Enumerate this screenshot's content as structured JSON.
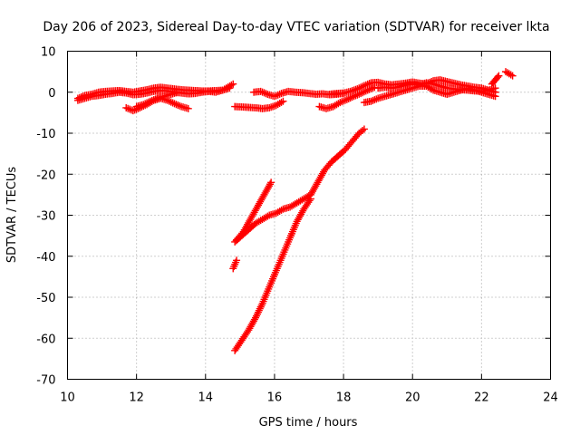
{
  "chart_data": {
    "type": "scatter",
    "title": "Day 206 of 2023, Sidereal Day-to-day VTEC variation (SDTVAR) for receiver lkta",
    "xlabel": "GPS time / hours",
    "ylabel": "SDTVAR / TECUs",
    "xlim": [
      10,
      24
    ],
    "ylim": [
      -70,
      10
    ],
    "xticks": [
      10,
      12,
      14,
      16,
      18,
      20,
      22,
      24
    ],
    "yticks": [
      10,
      0,
      -10,
      -20,
      -30,
      -40,
      -50,
      -60,
      -70
    ],
    "grid": true,
    "marker": "plus",
    "series_color": "#ff0000",
    "series": [
      {
        "x": [
          10.3,
          10.5,
          10.7,
          10.9,
          11.1,
          11.3,
          11.5,
          11.7,
          11.9,
          12.1,
          12.3,
          12.5,
          12.7,
          12.9,
          13.1,
          13.3,
          13.5,
          13.7,
          13.9,
          14.1,
          14.3,
          14.5,
          14.7
        ],
        "y": [
          -1.5,
          -0.8,
          -0.5,
          0,
          0.2,
          0.3,
          0.4,
          0.2,
          0,
          0.3,
          0.6,
          1.0,
          1.2,
          1.0,
          0.8,
          0.6,
          0.5,
          0.4,
          0.3,
          0.3,
          0.4,
          0.5,
          1.0
        ]
      },
      {
        "x": [
          10.3,
          10.5,
          10.7,
          10.9,
          11.1,
          11.3,
          11.5,
          11.7,
          11.9,
          12.1,
          12.3,
          12.5,
          12.7,
          12.9,
          13.1,
          13.3,
          13.5,
          13.7,
          13.9,
          14.1,
          14.3,
          14.5,
          14.8
        ],
        "y": [
          -2.0,
          -1.5,
          -1.0,
          -0.8,
          -0.5,
          -0.3,
          0,
          -0.2,
          -0.6,
          -0.5,
          -0.2,
          0.2,
          0.4,
          0.3,
          0,
          -0.2,
          -0.4,
          -0.3,
          0,
          0.2,
          0,
          0.5,
          2.0
        ]
      },
      {
        "x": [
          11.7,
          11.9,
          12.1,
          12.3,
          12.5,
          12.7,
          12.9,
          13.1,
          13.3,
          13.5
        ],
        "y": [
          -3.8,
          -4.5,
          -3.8,
          -3.0,
          -2.0,
          -1.5,
          -2.0,
          -2.8,
          -3.5,
          -4.0
        ]
      },
      {
        "x": [
          12.0,
          12.2,
          12.4,
          12.6,
          12.8,
          13.0,
          13.2
        ],
        "y": [
          -3.5,
          -3.0,
          -2.2,
          -1.5,
          -1.0,
          -0.5,
          0.0
        ]
      },
      {
        "x": [
          14.85,
          15.05,
          15.25,
          15.45,
          15.65,
          15.85,
          16.05,
          16.25
        ],
        "y": [
          -3.5,
          -3.6,
          -3.7,
          -3.8,
          -4.0,
          -3.8,
          -3.2,
          -2.2
        ]
      },
      {
        "x": [
          15.4,
          15.6,
          15.8,
          16.0,
          16.2,
          16.4,
          16.6,
          16.8,
          17.0,
          17.2,
          17.4,
          17.6,
          17.8,
          18.0
        ],
        "y": [
          0,
          0.2,
          -0.5,
          -1.0,
          -0.3,
          0.2,
          0,
          -0.1,
          -0.3,
          -0.5,
          -0.4,
          -0.6,
          -0.5,
          -0.3
        ]
      },
      {
        "x": [
          17.3,
          17.5,
          17.7,
          17.9,
          18.1,
          18.3,
          18.5,
          18.7,
          18.9
        ],
        "y": [
          -3.5,
          -4.0,
          -3.5,
          -2.5,
          -1.8,
          -1.0,
          -0.3,
          0.5,
          1.2
        ]
      },
      {
        "x": [
          17.6,
          17.8,
          18.0,
          18.2,
          18.4,
          18.6,
          18.8,
          19.0,
          19.2,
          19.4,
          19.6,
          19.8,
          20.0,
          20.2,
          20.4,
          20.6,
          20.8,
          21.0,
          21.2,
          21.4,
          21.6,
          21.8,
          22.0,
          22.2,
          22.4
        ],
        "y": [
          -0.5,
          -0.3,
          -0.2,
          0.2,
          0.8,
          1.6,
          2.3,
          2.4,
          2.0,
          1.8,
          2.0,
          2.2,
          2.5,
          2.2,
          2.0,
          2.8,
          3.0,
          2.6,
          2.2,
          1.8,
          1.5,
          1.2,
          1.0,
          0.5,
          0.0
        ]
      },
      {
        "x": [
          18.6,
          18.8,
          19.0,
          19.2,
          19.4,
          19.6,
          19.8,
          20.0,
          20.2,
          20.4,
          20.6,
          20.8,
          21.0,
          21.2,
          21.4,
          21.6,
          21.8,
          22.0,
          22.2,
          22.4
        ],
        "y": [
          -2.5,
          -2.2,
          -1.5,
          -1.0,
          -0.5,
          0,
          0.5,
          1.0,
          1.5,
          1.5,
          0.5,
          0,
          -0.5,
          0,
          0.5,
          1.0,
          0.5,
          0,
          -0.5,
          -1.0
        ]
      },
      {
        "x": [
          19.0,
          19.2,
          19.4,
          19.6,
          19.8,
          20.0,
          20.2,
          20.4,
          20.6,
          20.8,
          21.0,
          21.2,
          21.4,
          21.6,
          21.8,
          22.0,
          22.2,
          22.4
        ],
        "y": [
          1.0,
          1.2,
          1.0,
          1.3,
          1.8,
          2.0,
          1.8,
          2.3,
          2.0,
          1.5,
          1.0,
          0.8,
          0.6,
          0.5,
          0.3,
          0.3,
          0.5,
          1.0
        ]
      },
      {
        "x": [
          22.3,
          22.4,
          22.5
        ],
        "y": [
          2.0,
          3.0,
          4.0
        ]
      },
      {
        "x": [
          22.7,
          22.8,
          22.9
        ],
        "y": [
          5.0,
          4.5,
          4.0
        ]
      },
      {
        "x": [
          14.9,
          15.1,
          15.3,
          15.5,
          15.7,
          15.9
        ],
        "y": [
          -36,
          -34,
          -31,
          -28,
          -25,
          -22
        ]
      },
      {
        "x": [
          14.85,
          15.05,
          15.25,
          15.45,
          15.65,
          15.85,
          16.05,
          16.25,
          16.45,
          16.65,
          16.85,
          17.05,
          17.25,
          17.45,
          17.65,
          17.85,
          18.05,
          18.25,
          18.45,
          18.6
        ],
        "y": [
          -36.5,
          -35,
          -33.5,
          -32,
          -31,
          -30,
          -29.5,
          -28.5,
          -28,
          -27,
          -26,
          -25,
          -22,
          -19,
          -17,
          -15.5,
          -14,
          -12,
          -10,
          -9
        ]
      },
      {
        "x": [
          14.8,
          14.9
        ],
        "y": [
          -43,
          -41
        ]
      },
      {
        "x": [
          14.85,
          15.05,
          15.25,
          15.45,
          15.65,
          15.85,
          16.05,
          16.25,
          16.45,
          16.65,
          16.85,
          17.05
        ],
        "y": [
          -63,
          -60.5,
          -58,
          -55,
          -51.5,
          -47.5,
          -43.5,
          -39.5,
          -35.5,
          -31.5,
          -28.5,
          -26
        ]
      }
    ]
  }
}
